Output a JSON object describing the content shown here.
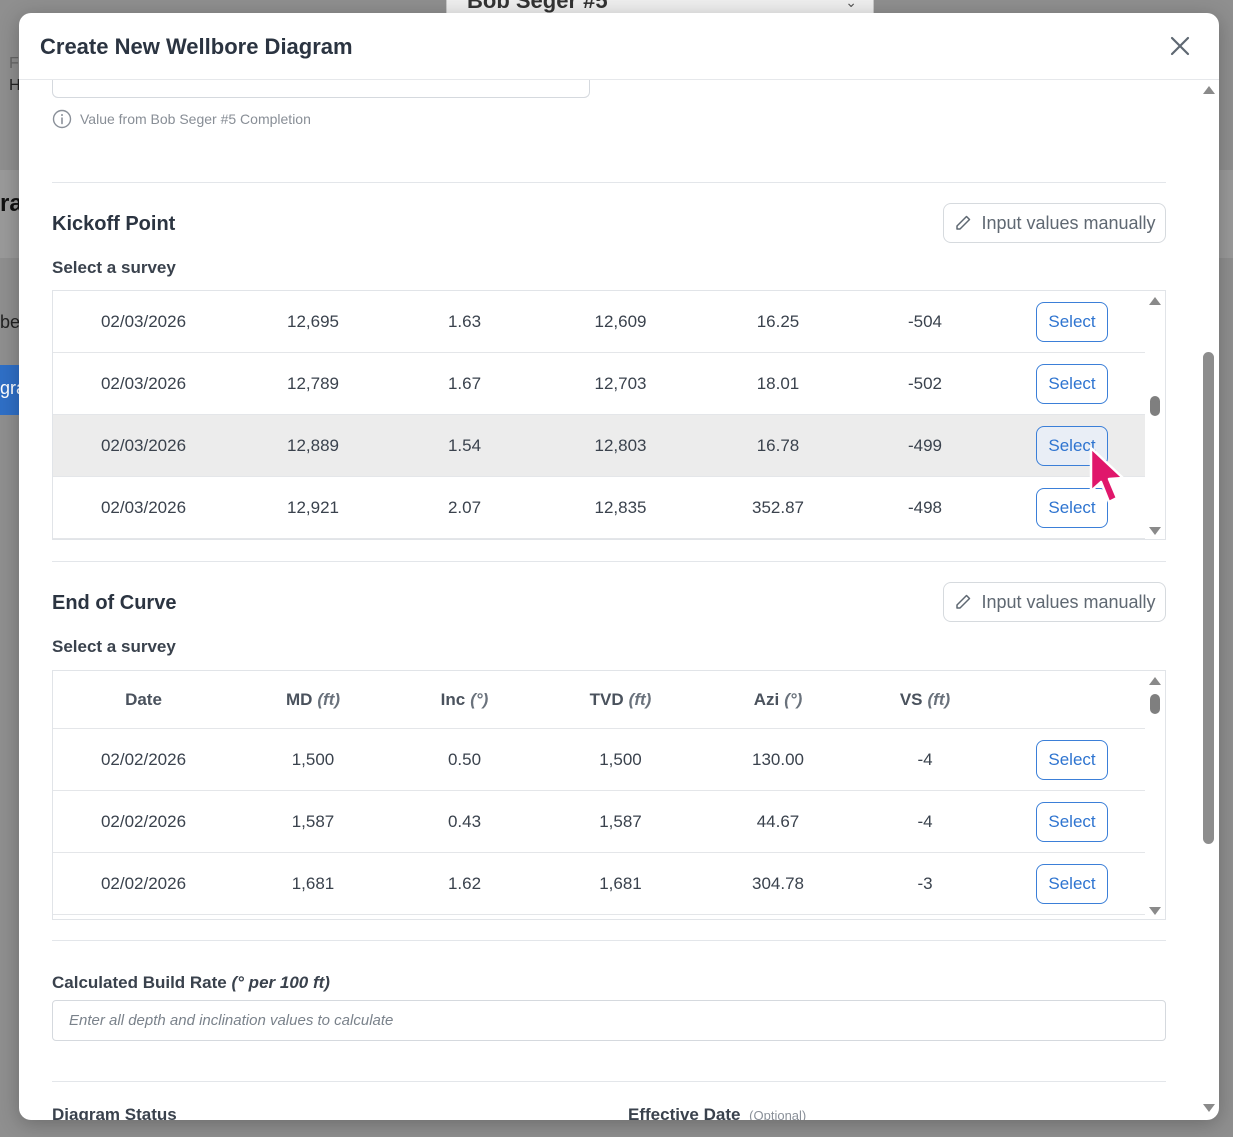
{
  "background": {
    "select_text": "Bob Seger #5",
    "left_letters": [
      "F",
      "H"
    ],
    "heading_fragment": "ra",
    "text_fragment": "bee",
    "button_fragment": "gra"
  },
  "modal": {
    "title": "Create New Wellbore Diagram",
    "info_text": "Value from Bob Seger #5 Completion"
  },
  "kickoff": {
    "title": "Kickoff Point",
    "manual_label": "Input values manually",
    "select_label": "Select a survey",
    "rows": [
      {
        "date": "02/03/2026",
        "md": "12,695",
        "inc": "1.63",
        "tvd": "12,609",
        "azi": "16.25",
        "vs": "-504",
        "action": "Select"
      },
      {
        "date": "02/03/2026",
        "md": "12,789",
        "inc": "1.67",
        "tvd": "12,703",
        "azi": "18.01",
        "vs": "-502",
        "action": "Select"
      },
      {
        "date": "02/03/2026",
        "md": "12,889",
        "inc": "1.54",
        "tvd": "12,803",
        "azi": "16.78",
        "vs": "-499",
        "action": "Select"
      },
      {
        "date": "02/03/2026",
        "md": "12,921",
        "inc": "2.07",
        "tvd": "12,835",
        "azi": "352.87",
        "vs": "-498",
        "action": "Select"
      }
    ]
  },
  "end_of_curve": {
    "title": "End of Curve",
    "manual_label": "Input values manually",
    "select_label": "Select a survey",
    "headers": {
      "date": "Date",
      "md": "MD",
      "md_unit": "(ft)",
      "inc": "Inc",
      "inc_unit": "(°)",
      "tvd": "TVD",
      "tvd_unit": "(ft)",
      "azi": "Azi",
      "azi_unit": "(°)",
      "vs": "VS",
      "vs_unit": "(ft)"
    },
    "rows": [
      {
        "date": "02/02/2026",
        "md": "1,500",
        "inc": "0.50",
        "tvd": "1,500",
        "azi": "130.00",
        "vs": "-4",
        "action": "Select"
      },
      {
        "date": "02/02/2026",
        "md": "1,587",
        "inc": "0.43",
        "tvd": "1,587",
        "azi": "44.67",
        "vs": "-4",
        "action": "Select"
      },
      {
        "date": "02/02/2026",
        "md": "1,681",
        "inc": "1.62",
        "tvd": "1,681",
        "azi": "304.78",
        "vs": "-3",
        "action": "Select"
      }
    ]
  },
  "build_rate": {
    "label": "Calculated Build Rate",
    "unit": "(° per 100 ft)",
    "placeholder": "Enter all depth and inclination values to calculate"
  },
  "bottom": {
    "diagram_status_label": "Diagram Status",
    "effective_date_label": "Effective Date",
    "effective_date_hint": "(Optional)"
  },
  "colors": {
    "accent": "#2e74d0",
    "cursor": "#e0176b",
    "overlay": "#8f8f8f"
  }
}
